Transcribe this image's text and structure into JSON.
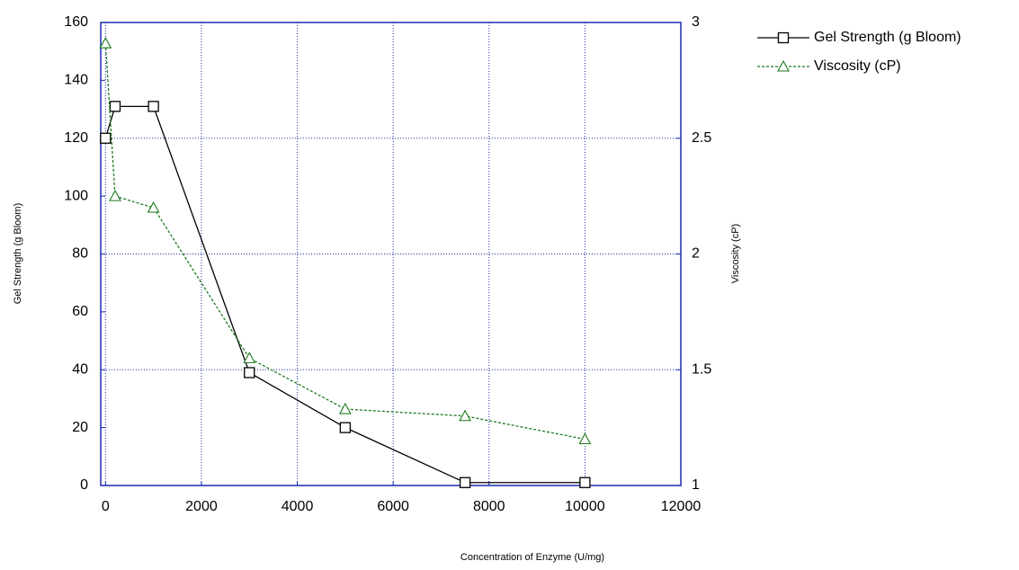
{
  "chart_data": {
    "type": "line",
    "x_label": "Concentration of Enzyme (U/mg)",
    "y_label": "Gel Strength (g Bloom)",
    "y2_label": "Viscosity (cP)",
    "x": [
      0,
      200,
      1000,
      3000,
      5000,
      7500,
      10000
    ],
    "series": [
      {
        "name": "Gel Strength (g Bloom)",
        "color": "#000000",
        "marker": "square",
        "dash": "solid",
        "values": [
          120,
          131,
          131,
          39,
          20,
          1,
          1
        ]
      },
      {
        "name": "Viscosity (cP)",
        "color": "#1e7a1e",
        "marker": "triangle",
        "dash": "dotted",
        "axis": "y2",
        "values": [
          2.91,
          2.25,
          2.2,
          1.55,
          1.33,
          1.3,
          1.2
        ]
      }
    ],
    "xlim": [
      -100,
      12000
    ],
    "xticks": [
      0,
      2000,
      4000,
      6000,
      8000,
      10000,
      12000
    ],
    "ylim": [
      0,
      160
    ],
    "yticks": [
      0,
      20,
      40,
      60,
      80,
      100,
      120,
      140,
      160
    ],
    "y2lim": [
      1,
      3
    ],
    "y2ticks": [
      1,
      {
        "value": 1.5,
        "label": "1.5"
      },
      2,
      {
        "value": 2.5,
        "label": "2.5"
      },
      3
    ],
    "grid": "y2",
    "frame_color": "#1c2bb0",
    "legend": "right"
  }
}
